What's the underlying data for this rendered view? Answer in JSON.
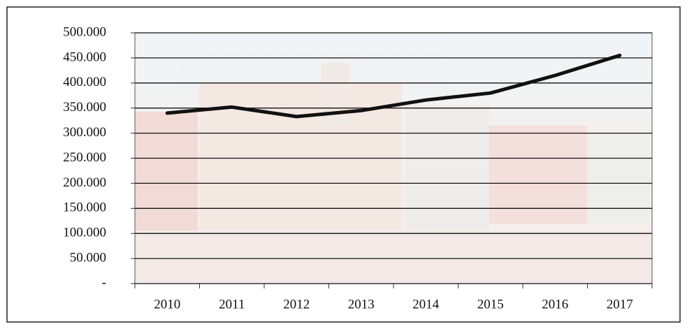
{
  "chart_data": {
    "type": "line",
    "categories": [
      "2010",
      "2011",
      "2012",
      "2013",
      "2014",
      "2015",
      "2016",
      "2017"
    ],
    "values": [
      340000,
      352000,
      333000,
      345000,
      366000,
      380000,
      415000,
      455000
    ],
    "color": "#111111",
    "ylim": [
      0,
      500000
    ],
    "yticks": [
      {
        "value": 0,
        "label": "-"
      },
      {
        "value": 50000,
        "label": "50.000"
      },
      {
        "value": 100000,
        "label": "100.000"
      },
      {
        "value": 150000,
        "label": "150.000"
      },
      {
        "value": 200000,
        "label": "200.000"
      },
      {
        "value": 250000,
        "label": "250.000"
      },
      {
        "value": 300000,
        "label": "300.000"
      },
      {
        "value": 350000,
        "label": "350.000"
      },
      {
        "value": 400000,
        "label": "400.000"
      },
      {
        "value": 450000,
        "label": "450.000"
      },
      {
        "value": 500000,
        "label": "500.000"
      }
    ],
    "grid": true
  }
}
